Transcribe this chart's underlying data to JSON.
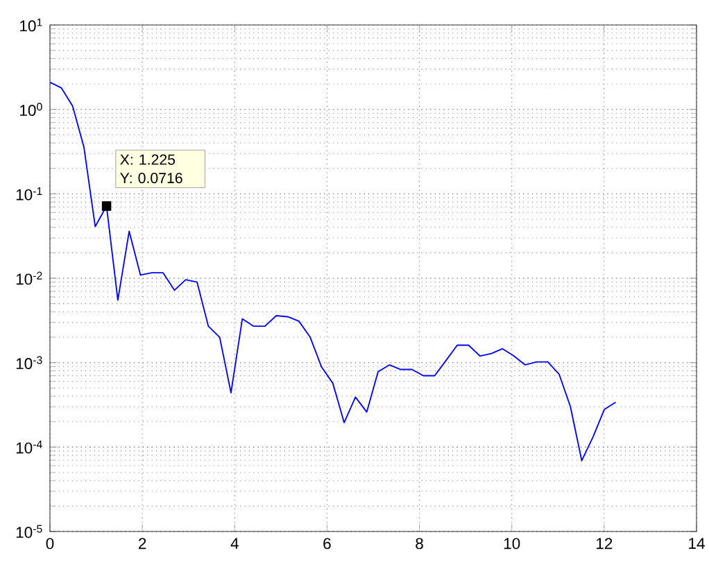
{
  "chart_data": {
    "type": "line",
    "x": [
      0,
      0.245,
      0.49,
      0.735,
      0.98,
      1.225,
      1.47,
      1.715,
      1.96,
      2.205,
      2.45,
      2.695,
      2.94,
      3.185,
      3.43,
      3.675,
      3.92,
      4.165,
      4.41,
      4.655,
      4.9,
      5.145,
      5.39,
      5.635,
      5.88,
      6.125,
      6.37,
      6.615,
      6.86,
      7.105,
      7.35,
      7.595,
      7.84,
      8.085,
      8.33,
      8.575,
      8.82,
      9.065,
      9.31,
      9.555,
      9.8,
      10.045,
      10.29,
      10.535,
      10.78,
      11.025,
      11.27,
      11.515,
      11.76,
      12.005,
      12.25
    ],
    "series": [
      {
        "color": "#0000ff",
        "values": [
          2.1,
          1.8,
          1.1,
          0.36,
          0.041,
          0.0716,
          0.0055,
          0.036,
          0.0109,
          0.0116,
          0.0116,
          0.0072,
          0.0096,
          0.009,
          0.0027,
          0.002,
          0.00044,
          0.0033,
          0.0027,
          0.0027,
          0.0036,
          0.0035,
          0.0031,
          0.002,
          0.00089,
          0.00057,
          0.000195,
          0.00039,
          0.00026,
          0.00078,
          0.00094,
          0.00083,
          0.00083,
          0.0007,
          0.0007,
          0.00106,
          0.00161,
          0.00161,
          0.0012,
          0.00128,
          0.00146,
          0.0012,
          0.00094,
          0.00102,
          0.00102,
          0.00073,
          0.0003,
          6.9e-05,
          0.000132,
          0.00028,
          0.00034
        ]
      }
    ],
    "xlim": [
      0,
      14
    ],
    "xticks": [
      0,
      2,
      4,
      6,
      8,
      10,
      12,
      14
    ],
    "ylim": [
      1e-05,
      10
    ],
    "yticks": [
      {
        "value": 1e-05,
        "label": "10$^{-5}$"
      },
      {
        "value": 0.0001,
        "label": "10$^{-4}$"
      },
      {
        "value": 0.001,
        "label": "10$^{-3}$"
      },
      {
        "value": 0.01,
        "label": "10$^{-2}$"
      },
      {
        "value": 0.1,
        "label": "10$^{-1}$"
      },
      {
        "value": 1,
        "label": "10$^{0}$"
      },
      {
        "value": 10,
        "label": "10$^{1}$"
      }
    ],
    "log": "y",
    "grid": true,
    "line_style": "solid",
    "annotations": [
      {
        "text": "X: 1.225",
        "x": 1.225,
        "y": 0.0716
      },
      {
        "text": "Y: 0.0716",
        "x": 1.225,
        "y": 0.0716
      }
    ]
  }
}
